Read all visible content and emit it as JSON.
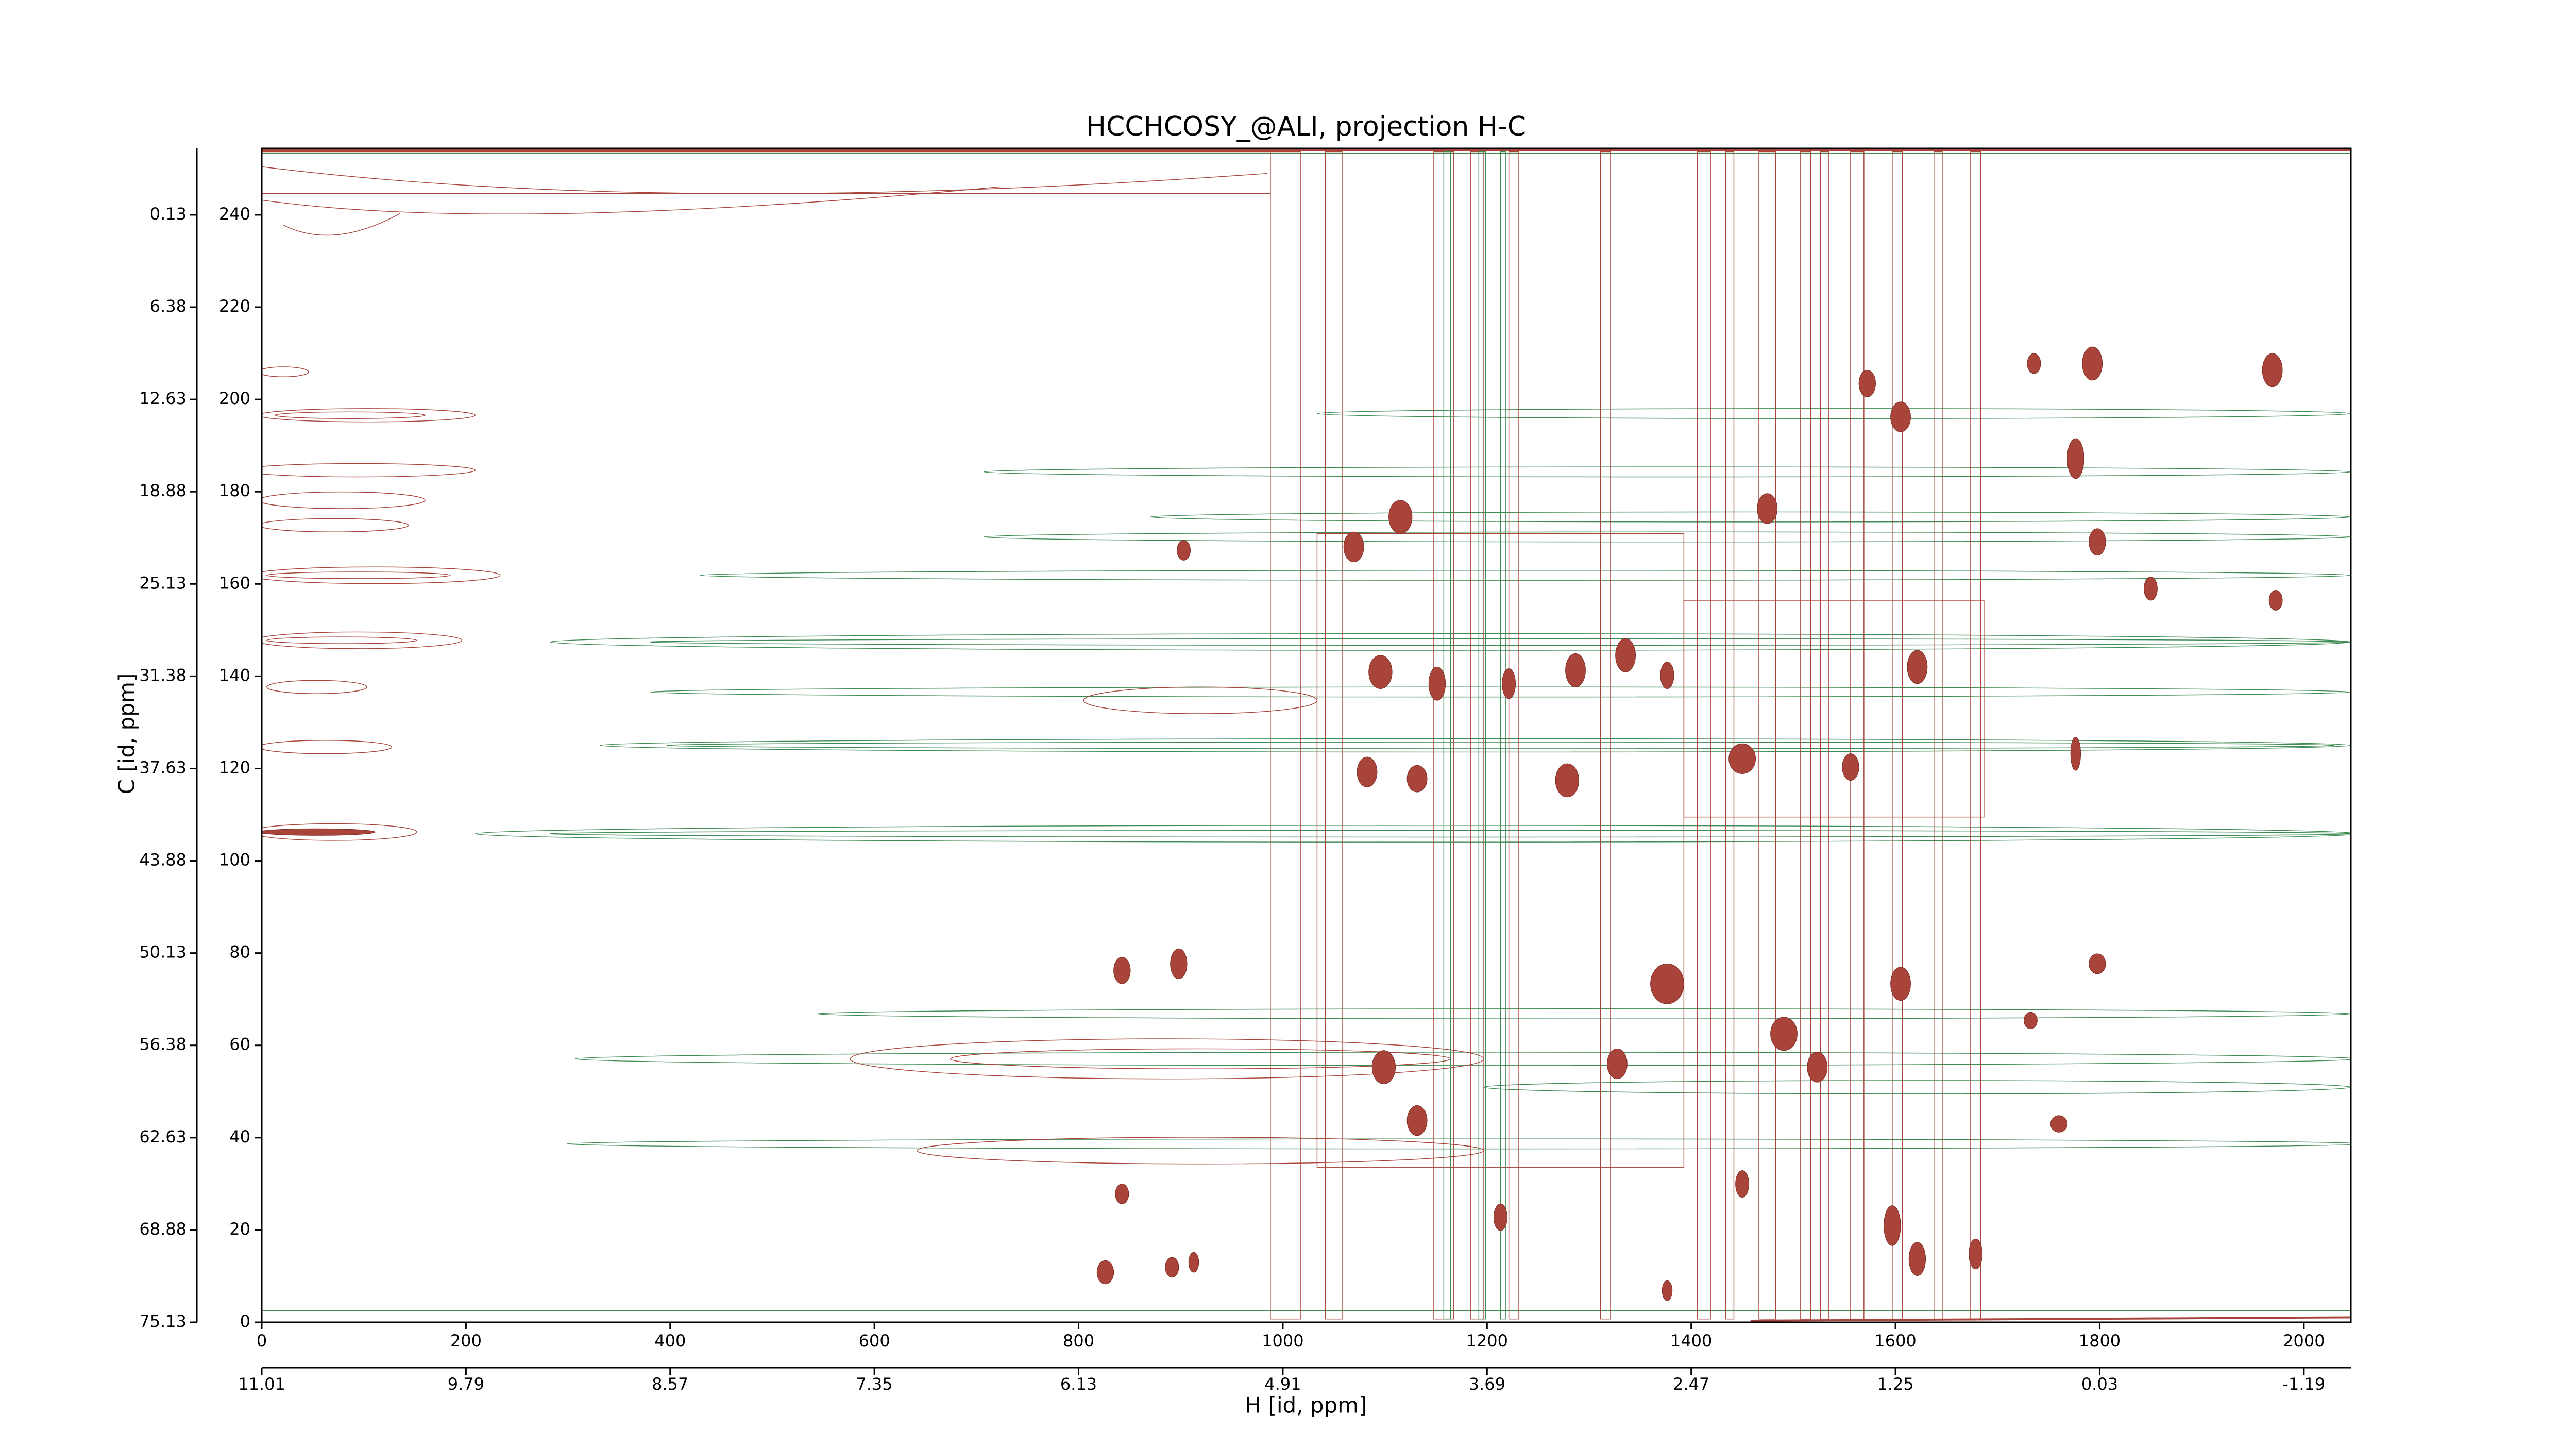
{
  "chart_data": {
    "type": "contour",
    "title": "HCCHCOSY_@ALI, projection H-C",
    "xlabel": "H [id, ppm]",
    "ylabel": "C [id, ppm]",
    "xlim": [
      0,
      2046
    ],
    "ylim": [
      0,
      254.4
    ],
    "xticks": [
      0,
      200,
      400,
      600,
      800,
      1000,
      1200,
      1400,
      1600,
      1800,
      2000
    ],
    "yticks": [
      0,
      20,
      40,
      60,
      80,
      100,
      120,
      140,
      160,
      180,
      200,
      220,
      240
    ],
    "x2ticks": [
      {
        "value": 0,
        "label": "11.01"
      },
      {
        "value": 200,
        "label": "9.79"
      },
      {
        "value": 400,
        "label": "8.57"
      },
      {
        "value": 600,
        "label": "7.35"
      },
      {
        "value": 800,
        "label": "6.13"
      },
      {
        "value": 1000,
        "label": "4.91"
      },
      {
        "value": 1200,
        "label": "3.69"
      },
      {
        "value": 1400,
        "label": "2.47"
      },
      {
        "value": 1600,
        "label": "1.25"
      },
      {
        "value": 1800,
        "label": "0.03"
      },
      {
        "value": 2000,
        "label": "-1.19"
      }
    ],
    "y2ticks": [
      {
        "value": 0,
        "label": "75.13"
      },
      {
        "value": 20,
        "label": "68.88"
      },
      {
        "value": 40,
        "label": "62.63"
      },
      {
        "value": 60,
        "label": "56.38"
      },
      {
        "value": 80,
        "label": "50.13"
      },
      {
        "value": 100,
        "label": "43.88"
      },
      {
        "value": 120,
        "label": "37.63"
      },
      {
        "value": 140,
        "label": "31.38"
      },
      {
        "value": 160,
        "label": "25.13"
      },
      {
        "value": 180,
        "label": "18.88"
      },
      {
        "value": 200,
        "label": "12.63"
      },
      {
        "value": 220,
        "label": "6.38"
      },
      {
        "value": 240,
        "label": "0.13"
      }
    ]
  }
}
